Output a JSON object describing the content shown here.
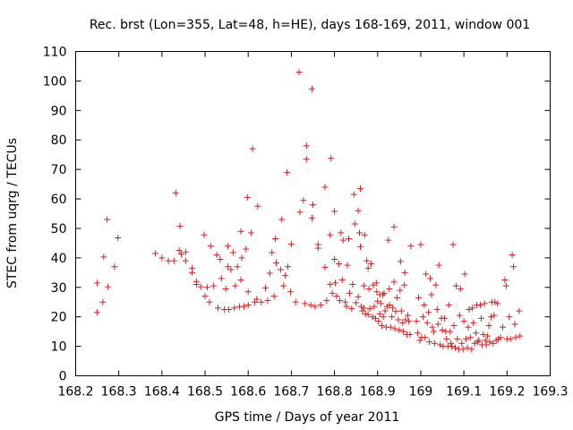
{
  "chart_data": {
    "type": "scatter",
    "title": "Rec. brst (Lon=355, Lat=48, h=HE), days 168-169, 2011, window 001",
    "xlabel": "GPS time / Days of year 2011",
    "ylabel": "STEC from uqrg / TECUs",
    "xlim": [
      168.2,
      169.3
    ],
    "ylim": [
      0,
      110
    ],
    "xticks": [
      "168.2",
      "168.3",
      "168.4",
      "168.5",
      "168.6",
      "168.7",
      "168.8",
      "168.9",
      "169",
      "169.1",
      "169.2",
      "169.3"
    ],
    "xtick_values": [
      168.2,
      168.3,
      168.4,
      168.5,
      168.6,
      168.7,
      168.8,
      168.9,
      169.0,
      169.1,
      169.2,
      169.3
    ],
    "yticks": [
      "0",
      "10",
      "20",
      "30",
      "40",
      "50",
      "60",
      "70",
      "80",
      "90",
      "100",
      "110"
    ],
    "ytick_values": [
      0,
      10,
      20,
      30,
      40,
      50,
      60,
      70,
      80,
      90,
      100,
      110
    ],
    "marker": "+",
    "color": "#d02020",
    "grid": false,
    "points": [
      [
        168.25,
        31.5
      ],
      [
        168.25,
        21.5
      ],
      [
        168.263,
        25
      ],
      [
        168.265,
        40.3
      ],
      [
        168.273,
        53
      ],
      [
        168.275,
        30.2
      ],
      [
        168.29,
        37
      ],
      [
        168.298,
        46.8
      ],
      [
        168.385,
        41.5
      ],
      [
        168.4,
        40
      ],
      [
        168.415,
        39
      ],
      [
        168.428,
        39
      ],
      [
        168.432,
        62
      ],
      [
        168.44,
        42.5
      ],
      [
        168.442,
        50.8
      ],
      [
        168.445,
        41.3
      ],
      [
        168.455,
        42
      ],
      [
        168.455,
        39
      ],
      [
        168.47,
        36.5
      ],
      [
        168.47,
        35
      ],
      [
        168.48,
        32
      ],
      [
        168.48,
        31
      ],
      [
        168.49,
        30.2
      ],
      [
        168.498,
        47.8
      ],
      [
        168.5,
        27
      ],
      [
        168.505,
        30
      ],
      [
        168.51,
        25
      ],
      [
        168.513,
        44
      ],
      [
        168.52,
        30.5
      ],
      [
        168.527,
        41
      ],
      [
        168.53,
        23
      ],
      [
        168.535,
        39.5
      ],
      [
        168.538,
        33
      ],
      [
        168.545,
        22.5
      ],
      [
        168.548,
        29.5
      ],
      [
        168.553,
        37
      ],
      [
        168.553,
        44
      ],
      [
        168.555,
        22.5
      ],
      [
        168.56,
        36
      ],
      [
        168.565,
        41.8
      ],
      [
        168.568,
        23
      ],
      [
        168.57,
        30.5
      ],
      [
        168.575,
        37
      ],
      [
        168.58,
        23.5
      ],
      [
        168.583,
        49
      ],
      [
        168.583,
        32.5
      ],
      [
        168.585,
        40
      ],
      [
        168.59,
        23.5
      ],
      [
        168.595,
        43
      ],
      [
        168.598,
        60.5
      ],
      [
        168.6,
        28.5
      ],
      [
        168.6,
        24
      ],
      [
        168.607,
        48.5
      ],
      [
        168.61,
        77
      ],
      [
        168.615,
        25
      ],
      [
        168.62,
        26
      ],
      [
        168.622,
        57.5
      ],
      [
        168.63,
        25
      ],
      [
        168.64,
        29.8
      ],
      [
        168.645,
        25.5
      ],
      [
        168.65,
        34.8
      ],
      [
        168.655,
        41.8
      ],
      [
        168.66,
        27
      ],
      [
        168.663,
        46.5
      ],
      [
        168.665,
        38.3
      ],
      [
        168.675,
        36
      ],
      [
        168.678,
        53
      ],
      [
        168.682,
        30.5
      ],
      [
        168.686,
        34
      ],
      [
        168.69,
        69
      ],
      [
        168.692,
        37
      ],
      [
        168.698,
        28.5
      ],
      [
        168.7,
        44.7
      ],
      [
        168.71,
        25
      ],
      [
        168.718,
        103
      ],
      [
        168.72,
        55.5
      ],
      [
        168.728,
        59.5
      ],
      [
        168.732,
        24.5
      ],
      [
        168.735,
        78
      ],
      [
        168.735,
        73.5
      ],
      [
        168.745,
        24
      ],
      [
        168.748,
        97.3
      ],
      [
        168.748,
        53.5
      ],
      [
        168.75,
        58
      ],
      [
        168.755,
        23.5
      ],
      [
        168.762,
        44.5
      ],
      [
        168.762,
        43.3
      ],
      [
        168.768,
        24
      ],
      [
        168.778,
        36.8
      ],
      [
        168.778,
        64
      ],
      [
        168.782,
        25.5
      ],
      [
        168.79,
        47.8
      ],
      [
        168.79,
        31
      ],
      [
        168.792,
        73.8
      ],
      [
        168.795,
        28
      ],
      [
        168.8,
        55.8
      ],
      [
        168.8,
        39.5
      ],
      [
        168.802,
        31.5
      ],
      [
        168.805,
        27
      ],
      [
        168.81,
        38
      ],
      [
        168.812,
        25.5
      ],
      [
        168.815,
        48.5
      ],
      [
        168.818,
        32.5
      ],
      [
        168.82,
        46
      ],
      [
        168.825,
        25
      ],
      [
        168.828,
        23.5
      ],
      [
        168.83,
        37.5
      ],
      [
        168.833,
        46.5
      ],
      [
        168.835,
        28
      ],
      [
        168.84,
        22.8
      ],
      [
        168.842,
        31
      ],
      [
        168.845,
        61.5
      ],
      [
        168.847,
        51.5
      ],
      [
        168.85,
        24.8
      ],
      [
        168.855,
        56
      ],
      [
        168.855,
        26.8
      ],
      [
        168.858,
        48.5
      ],
      [
        168.86,
        63.5
      ],
      [
        168.86,
        43.8
      ],
      [
        168.862,
        23.5
      ],
      [
        168.865,
        22
      ],
      [
        168.868,
        30.5
      ],
      [
        168.868,
        23
      ],
      [
        168.87,
        47.8
      ],
      [
        168.872,
        21
      ],
      [
        168.875,
        39
      ],
      [
        168.878,
        36.5
      ],
      [
        168.878,
        20.8
      ],
      [
        168.88,
        29.5
      ],
      [
        168.882,
        22.8
      ],
      [
        168.885,
        38
      ],
      [
        168.888,
        20
      ],
      [
        168.89,
        30.8
      ],
      [
        168.892,
        23.5
      ],
      [
        168.895,
        19.5
      ],
      [
        168.897,
        31.5
      ],
      [
        168.898,
        28.5
      ],
      [
        168.9,
        25.3
      ],
      [
        168.902,
        18.5
      ],
      [
        168.905,
        27.5
      ],
      [
        168.905,
        21
      ],
      [
        168.908,
        24.5
      ],
      [
        168.91,
        17
      ],
      [
        168.912,
        27.5
      ],
      [
        168.913,
        20
      ],
      [
        168.915,
        28
      ],
      [
        168.917,
        22
      ],
      [
        168.92,
        16.5
      ],
      [
        168.922,
        23.5
      ],
      [
        168.925,
        46
      ],
      [
        168.927,
        29.5
      ],
      [
        168.928,
        24
      ],
      [
        168.93,
        16.5
      ],
      [
        168.933,
        20
      ],
      [
        168.935,
        23
      ],
      [
        168.938,
        50.5
      ],
      [
        168.938,
        31.8
      ],
      [
        168.94,
        16
      ],
      [
        168.942,
        21.8
      ],
      [
        168.945,
        26.5
      ],
      [
        168.948,
        19
      ],
      [
        168.95,
        15.5
      ],
      [
        168.952,
        29
      ],
      [
        168.953,
        38.8
      ],
      [
        168.955,
        22
      ],
      [
        168.958,
        18
      ],
      [
        168.96,
        15
      ],
      [
        168.962,
        30.8
      ],
      [
        168.963,
        35
      ],
      [
        168.965,
        19
      ],
      [
        168.968,
        14
      ],
      [
        168.97,
        20.5
      ],
      [
        168.972,
        18.5
      ],
      [
        168.975,
        14
      ],
      [
        168.977,
        44
      ],
      [
        168.99,
        18.5
      ],
      [
        168.993,
        14.5
      ],
      [
        168.995,
        26.5
      ],
      [
        168.998,
        12
      ],
      [
        169.0,
        44.5
      ],
      [
        169.002,
        13
      ],
      [
        169.005,
        20
      ],
      [
        169.008,
        24
      ],
      [
        169.01,
        13
      ],
      [
        169.012,
        34.5
      ],
      [
        169.015,
        18
      ],
      [
        169.018,
        21.5
      ],
      [
        169.02,
        11.5
      ],
      [
        169.022,
        33
      ],
      [
        169.025,
        27.5
      ],
      [
        169.027,
        16.5
      ],
      [
        169.03,
        15
      ],
      [
        169.032,
        11
      ],
      [
        169.035,
        30.8
      ],
      [
        169.038,
        22.5
      ],
      [
        169.04,
        17.5
      ],
      [
        169.042,
        37.5
      ],
      [
        169.045,
        10.5
      ],
      [
        169.048,
        19.5
      ],
      [
        169.05,
        15.5
      ],
      [
        169.052,
        10
      ],
      [
        169.055,
        19.5
      ],
      [
        169.058,
        15
      ],
      [
        169.06,
        12.5
      ],
      [
        169.063,
        10
      ],
      [
        169.065,
        24
      ],
      [
        169.068,
        15
      ],
      [
        169.07,
        11
      ],
      [
        169.072,
        10
      ],
      [
        169.075,
        44.5
      ],
      [
        169.077,
        17
      ],
      [
        169.08,
        9.5
      ],
      [
        169.082,
        30.5
      ],
      [
        169.085,
        12.5
      ],
      [
        169.088,
        9
      ],
      [
        169.09,
        20.5
      ],
      [
        169.092,
        29.5
      ],
      [
        169.095,
        11
      ],
      [
        169.098,
        9
      ],
      [
        169.1,
        18.5
      ],
      [
        169.102,
        34.5
      ],
      [
        169.105,
        12.5
      ],
      [
        169.108,
        9.5
      ],
      [
        169.11,
        16.5
      ],
      [
        169.112,
        22.5
      ],
      [
        169.115,
        13
      ],
      [
        169.118,
        9
      ],
      [
        169.12,
        23
      ],
      [
        169.122,
        18
      ],
      [
        169.125,
        11
      ],
      [
        169.128,
        14.5
      ],
      [
        169.13,
        24
      ],
      [
        169.132,
        11.5
      ],
      [
        169.135,
        12
      ],
      [
        169.138,
        24
      ],
      [
        169.14,
        19.5
      ],
      [
        169.142,
        10.5
      ],
      [
        169.145,
        14
      ],
      [
        169.148,
        24.5
      ],
      [
        169.15,
        12
      ],
      [
        169.152,
        10.5
      ],
      [
        169.155,
        13.5
      ],
      [
        169.158,
        17
      ],
      [
        169.16,
        11.5
      ],
      [
        169.163,
        20
      ],
      [
        169.165,
        25
      ],
      [
        169.168,
        11
      ],
      [
        169.17,
        20.5
      ],
      [
        169.172,
        25
      ],
      [
        169.175,
        12
      ],
      [
        169.178,
        24.5
      ],
      [
        169.18,
        12.5
      ],
      [
        169.185,
        13
      ],
      [
        169.19,
        16.5
      ],
      [
        169.195,
        32.5
      ],
      [
        169.198,
        30.5
      ],
      [
        169.2,
        12.5
      ],
      [
        169.205,
        20
      ],
      [
        169.208,
        12.5
      ],
      [
        169.212,
        41
      ],
      [
        169.215,
        37
      ],
      [
        169.218,
        17.5
      ],
      [
        169.22,
        13
      ],
      [
        169.228,
        22
      ],
      [
        169.23,
        13.5
      ]
    ]
  }
}
